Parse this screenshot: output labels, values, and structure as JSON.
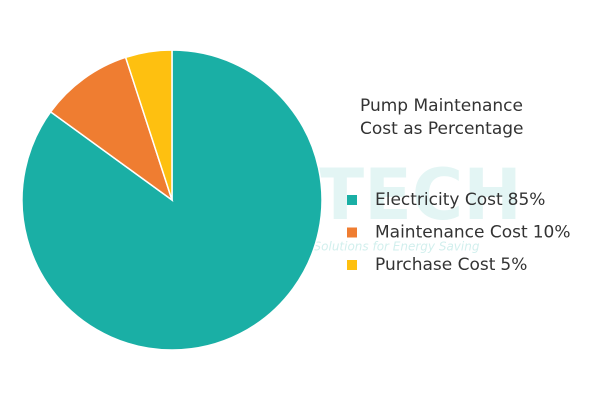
{
  "chart_data": {
    "type": "pie",
    "title": "Pump Maintenance Cost as Percentage",
    "categories": [
      "Electricity Cost",
      "Maintenance Cost",
      "Purchase Cost"
    ],
    "values": [
      85,
      10,
      5
    ],
    "value_labels": [
      "85%",
      "10%",
      "5%"
    ],
    "colors": [
      "#1aafa5",
      "#ef7d31",
      "#fec010"
    ],
    "watermark": {
      "text": "ESTECH",
      "tagline": "Efficient Solutions for Energy Saving"
    }
  }
}
